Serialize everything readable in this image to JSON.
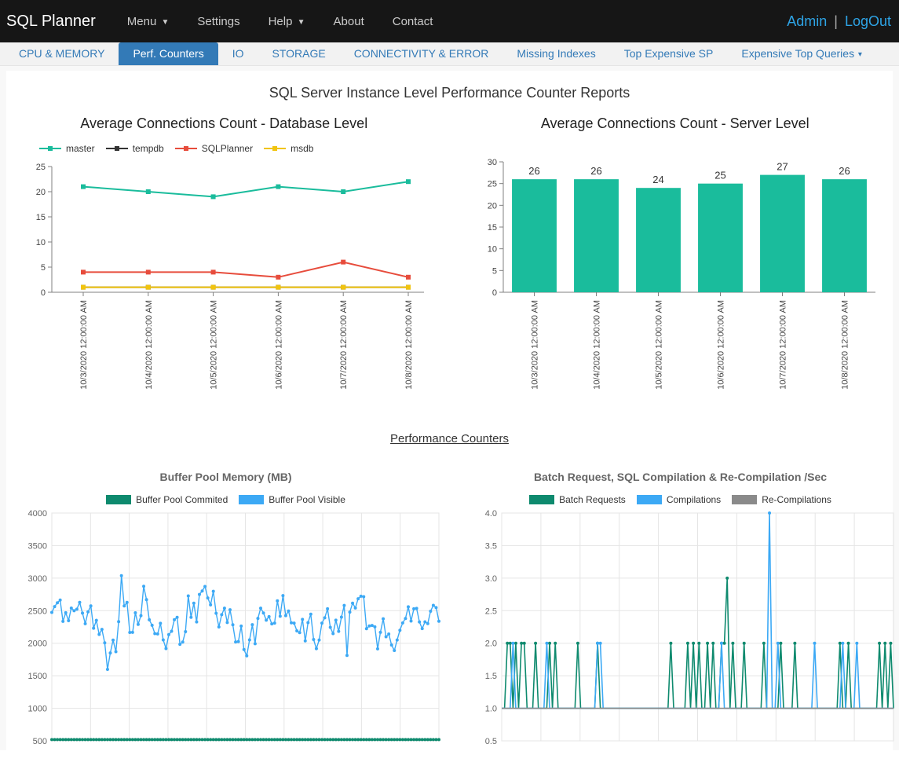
{
  "app": {
    "brand": "SQL Planner"
  },
  "topmenu": {
    "items": [
      {
        "label": "Menu",
        "dropdown": true
      },
      {
        "label": "Settings",
        "dropdown": false
      },
      {
        "label": "Help",
        "dropdown": true
      },
      {
        "label": "About",
        "dropdown": false
      },
      {
        "label": "Contact",
        "dropdown": false
      }
    ],
    "admin": "Admin",
    "sep": "|",
    "logout": "LogOut"
  },
  "tabs": [
    {
      "label": "CPU & MEMORY",
      "active": false
    },
    {
      "label": "Perf. Counters",
      "active": true
    },
    {
      "label": "IO",
      "active": false
    },
    {
      "label": "STORAGE",
      "active": false
    },
    {
      "label": "CONNECTIVITY & ERROR",
      "active": false
    },
    {
      "label": "Missing Indexes",
      "active": false
    },
    {
      "label": "Top Expensive SP",
      "active": false
    },
    {
      "label": "Expensive Top Queries",
      "active": false,
      "dropdown": true
    }
  ],
  "page": {
    "title": "SQL Server Instance Level Performance Counter Reports",
    "section2": "Performance Counters"
  },
  "chart_db": {
    "type": "line",
    "title": "Average Connections Count - Database Level",
    "categories": [
      "10/3/2020 12:00:00 AM",
      "10/4/2020 12:00:00 AM",
      "10/5/2020 12:00:00 AM",
      "10/6/2020 12:00:00 AM",
      "10/7/2020 12:00:00 AM",
      "10/8/2020 12:00:00 AM"
    ],
    "ylim": [
      0,
      25
    ],
    "ytick_step": 5,
    "series": [
      {
        "name": "master",
        "color": "#1abc9c",
        "values": [
          21,
          20,
          19,
          21,
          20,
          22
        ]
      },
      {
        "name": "tempdb",
        "color": "#333333",
        "values": [
          1,
          1,
          1,
          1,
          1,
          1
        ]
      },
      {
        "name": "SQLPlanner",
        "color": "#e74c3c",
        "values": [
          4,
          4,
          4,
          3,
          6,
          3
        ]
      },
      {
        "name": "msdb",
        "color": "#f1c40f",
        "values": [
          1,
          1,
          1,
          1,
          1,
          1
        ]
      }
    ],
    "marker_radius": 3,
    "line_width": 2,
    "background_color": "#ffffff",
    "axis_color": "#808080",
    "label_fontsize": 11
  },
  "chart_srv": {
    "type": "bar",
    "title": "Average Connections Count - Server Level",
    "categories": [
      "10/3/2020 12:00:00 AM",
      "10/4/2020 12:00:00 AM",
      "10/5/2020 12:00:00 AM",
      "10/6/2020 12:00:00 AM",
      "10/7/2020 12:00:00 AM",
      "10/8/2020 12:00:00 AM"
    ],
    "values": [
      26,
      26,
      24,
      25,
      27,
      26
    ],
    "bar_color": "#1abc9c",
    "ylim": [
      0,
      30
    ],
    "ytick_step": 5,
    "bar_width": 0.72,
    "show_values": true,
    "background_color": "#ffffff",
    "axis_color": "#808080",
    "label_fontsize": 11
  },
  "chart_buffer": {
    "type": "line-dense",
    "title": "Buffer Pool Memory (MB)",
    "ylim": [
      500,
      4000
    ],
    "ytick_step": 500,
    "n_points": 140,
    "grid_color": "#e5e5e5",
    "series": [
      {
        "name": "Buffer Pool Commited",
        "color": "#0e8a6e",
        "base": 300,
        "amp": 120,
        "noise": 80,
        "spike_prob": 0.03,
        "spike_amp": 200,
        "seed": 11
      },
      {
        "name": "Buffer Pool Visible",
        "color": "#3ca9f5",
        "base": 2300,
        "amp": 700,
        "noise": 450,
        "spike_prob": 0.06,
        "spike_amp": 900,
        "seed": 7
      }
    ],
    "marker_radius": 2,
    "line_width": 1.4
  },
  "chart_batch": {
    "type": "line-sparse",
    "title": "Batch Request, SQL Compilation & Re-Compilation /Sec",
    "ylim": [
      0.5,
      4.0
    ],
    "ytick_step": 0.5,
    "n_points": 140,
    "grid_color": "#e5e5e5",
    "series": [
      {
        "name": "Batch Requests",
        "color": "#0e8a6e",
        "base": 1.0,
        "spike_vals": [
          2.0
        ],
        "big_spikes": [
          [
            80,
            3.0
          ]
        ],
        "prob": 0.2,
        "seed": 21
      },
      {
        "name": "Compilations",
        "color": "#3ca9f5",
        "base": 1.0,
        "spike_vals": [
          2.0
        ],
        "big_spikes": [
          [
            95,
            4.0
          ]
        ],
        "prob": 0.04,
        "seed": 33
      },
      {
        "name": "Re-Compilations",
        "color": "#8a8a8a",
        "base": 1.0,
        "spike_vals": [],
        "big_spikes": [],
        "prob": 0.0,
        "seed": 44
      }
    ],
    "marker_radius": 2,
    "line_width": 1.6
  }
}
